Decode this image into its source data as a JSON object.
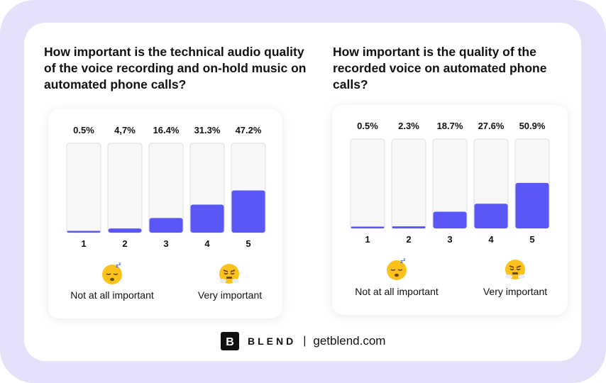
{
  "colors": {
    "accent": "#5b57f6",
    "track_fill": "#f7f7f9",
    "track_border": "#dcdce3",
    "page_background": "#e4e2fb"
  },
  "icons": {
    "low_end": "sleeping-face-emoji",
    "high_end": "steam-from-nose-emoji"
  },
  "chart_data": [
    {
      "type": "bar",
      "title": "How important is the technical audio quality of the voice recording and on-hold music on automated phone calls?",
      "categories": [
        "1",
        "2",
        "3",
        "4",
        "5"
      ],
      "values": [
        0.5,
        4.7,
        16.4,
        31.3,
        47.2
      ],
      "value_labels": [
        "0.5%",
        "4,7%",
        "16.4%",
        "31.3%",
        "47.2%"
      ],
      "unit": "%",
      "ylim": [
        0,
        100
      ],
      "scale_low_label": "Not at all important",
      "scale_high_label": "Very important"
    },
    {
      "type": "bar",
      "title": "How important is the quality of the recorded voice on automated phone calls?",
      "categories": [
        "1",
        "2",
        "3",
        "4",
        "5"
      ],
      "values": [
        0.5,
        2.3,
        18.7,
        27.6,
        50.9
      ],
      "value_labels": [
        "0.5%",
        "2.3%",
        "18.7%",
        "27.6%",
        "50.9%"
      ],
      "unit": "%",
      "ylim": [
        0,
        100
      ],
      "scale_low_label": "Not at all important",
      "scale_high_label": "Very important"
    }
  ],
  "footer": {
    "logo_letter": "B",
    "brand": "BLEND",
    "separator": "|",
    "website": "getblend.com"
  }
}
